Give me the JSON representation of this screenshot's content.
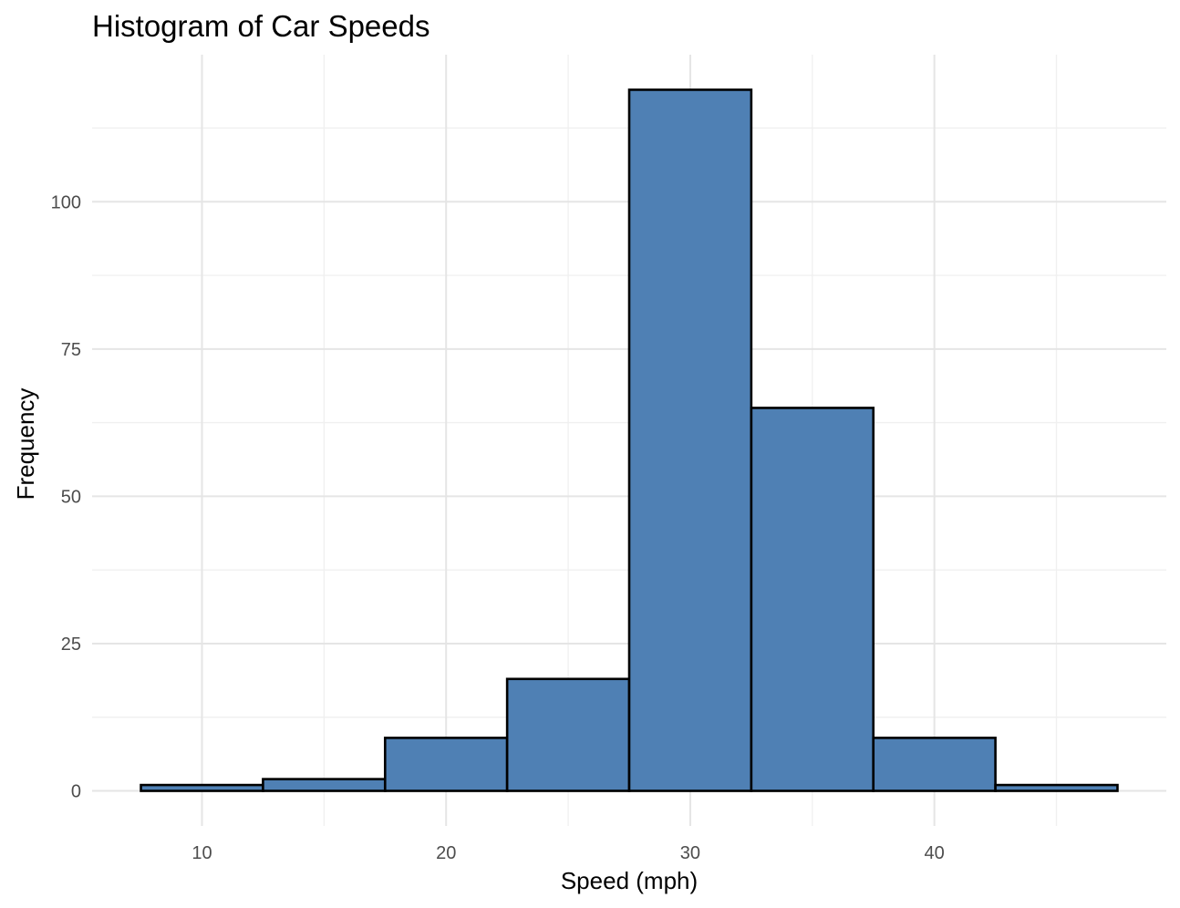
{
  "chart_data": {
    "type": "bar",
    "title": "Histogram of Car Speeds",
    "xlabel": "Speed (mph)",
    "ylabel": "Frequency",
    "bin_width": 5,
    "bins": [
      {
        "x_start": 7.5,
        "x_end": 12.5,
        "count": 1
      },
      {
        "x_start": 12.5,
        "x_end": 17.5,
        "count": 2
      },
      {
        "x_start": 17.5,
        "x_end": 22.5,
        "count": 9
      },
      {
        "x_start": 22.5,
        "x_end": 27.5,
        "count": 19
      },
      {
        "x_start": 27.5,
        "x_end": 32.5,
        "count": 119
      },
      {
        "x_start": 32.5,
        "x_end": 37.5,
        "count": 65
      },
      {
        "x_start": 37.5,
        "x_end": 42.5,
        "count": 9
      },
      {
        "x_start": 42.5,
        "x_end": 47.5,
        "count": 1
      }
    ],
    "x_ticks": [
      10,
      20,
      30,
      40
    ],
    "x_minor_ticks": [
      15,
      25,
      35,
      45
    ],
    "y_ticks": [
      0,
      25,
      50,
      75,
      100
    ],
    "y_minor_ticks": [
      12.5,
      37.5,
      62.5,
      87.5,
      112.5
    ],
    "xlim": [
      5.5,
      49.5
    ],
    "ylim": [
      -5.95,
      124.95
    ],
    "grid": true,
    "legend": "none",
    "colors": {
      "fill": "#4f80b4",
      "outline": "#000000"
    }
  }
}
